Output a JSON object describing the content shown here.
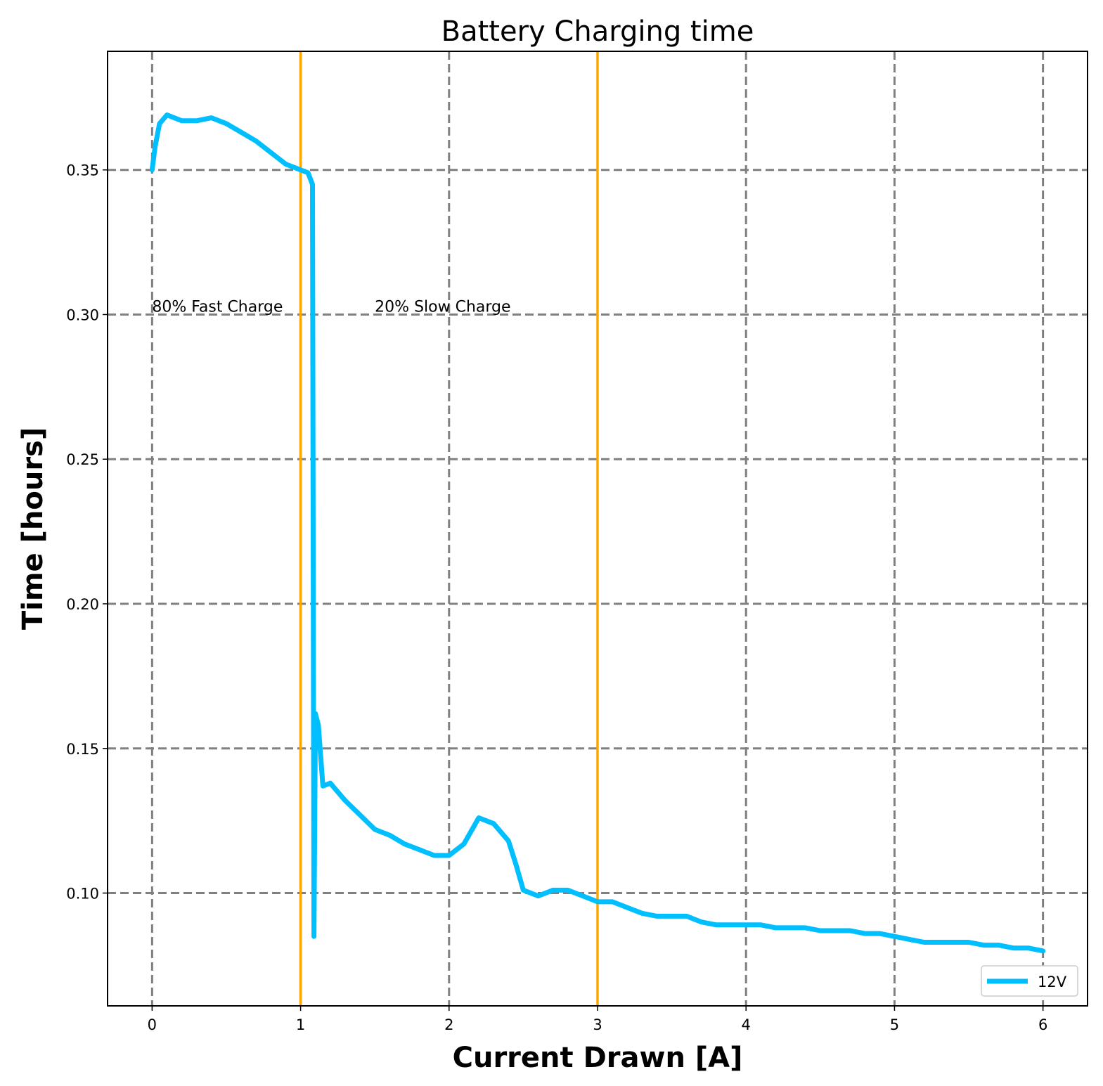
{
  "chart_data": {
    "type": "line",
    "title": "Battery Charging time",
    "xlabel": "Current Drawn [A]",
    "ylabel": "Time [hours]",
    "xlim": [
      -0.3,
      6.3
    ],
    "ylim": [
      0.061,
      0.391
    ],
    "xticks": [
      0,
      1,
      2,
      3,
      4,
      5,
      6
    ],
    "yticks": [
      0.1,
      0.15,
      0.2,
      0.25,
      0.3,
      0.35
    ],
    "ytick_labels": [
      "0.10",
      "0.15",
      "0.20",
      "0.25",
      "0.30",
      "0.35"
    ],
    "grid": true,
    "legend": {
      "position": "lower-right",
      "entries": [
        "12V"
      ]
    },
    "colors": {
      "series": "#00bfff",
      "vlines": "#ffa500",
      "grid": "#808080"
    },
    "vlines": [
      1,
      3
    ],
    "annotations": [
      {
        "text": "80% Fast Charge",
        "x": 0.0,
        "y": 0.301
      },
      {
        "text": "20% Slow Charge",
        "x": 1.5,
        "y": 0.301
      }
    ],
    "series": [
      {
        "name": "12V",
        "x": [
          0.0,
          0.02,
          0.05,
          0.1,
          0.15,
          0.2,
          0.3,
          0.4,
          0.5,
          0.6,
          0.7,
          0.8,
          0.9,
          1.0,
          1.05,
          1.08,
          1.09,
          1.1,
          1.12,
          1.15,
          1.2,
          1.3,
          1.4,
          1.5,
          1.6,
          1.7,
          1.8,
          1.9,
          2.0,
          2.1,
          2.2,
          2.3,
          2.4,
          2.45,
          2.5,
          2.6,
          2.7,
          2.8,
          2.9,
          3.0,
          3.1,
          3.2,
          3.3,
          3.4,
          3.5,
          3.6,
          3.7,
          3.8,
          3.9,
          4.0,
          4.1,
          4.2,
          4.3,
          4.4,
          4.5,
          4.6,
          4.7,
          4.8,
          4.9,
          5.0,
          5.1,
          5.2,
          5.3,
          5.4,
          5.5,
          5.6,
          5.7,
          5.8,
          5.9,
          6.0
        ],
        "y": [
          0.35,
          0.358,
          0.366,
          0.369,
          0.368,
          0.367,
          0.367,
          0.368,
          0.366,
          0.363,
          0.36,
          0.356,
          0.352,
          0.35,
          0.349,
          0.345,
          0.085,
          0.162,
          0.158,
          0.137,
          0.138,
          0.132,
          0.127,
          0.122,
          0.12,
          0.117,
          0.115,
          0.113,
          0.113,
          0.117,
          0.126,
          0.124,
          0.118,
          0.11,
          0.101,
          0.099,
          0.101,
          0.101,
          0.099,
          0.097,
          0.097,
          0.095,
          0.093,
          0.092,
          0.092,
          0.092,
          0.09,
          0.089,
          0.089,
          0.089,
          0.089,
          0.088,
          0.088,
          0.088,
          0.087,
          0.087,
          0.087,
          0.086,
          0.086,
          0.085,
          0.084,
          0.083,
          0.083,
          0.083,
          0.083,
          0.082,
          0.082,
          0.081,
          0.081,
          0.08
        ]
      }
    ]
  }
}
